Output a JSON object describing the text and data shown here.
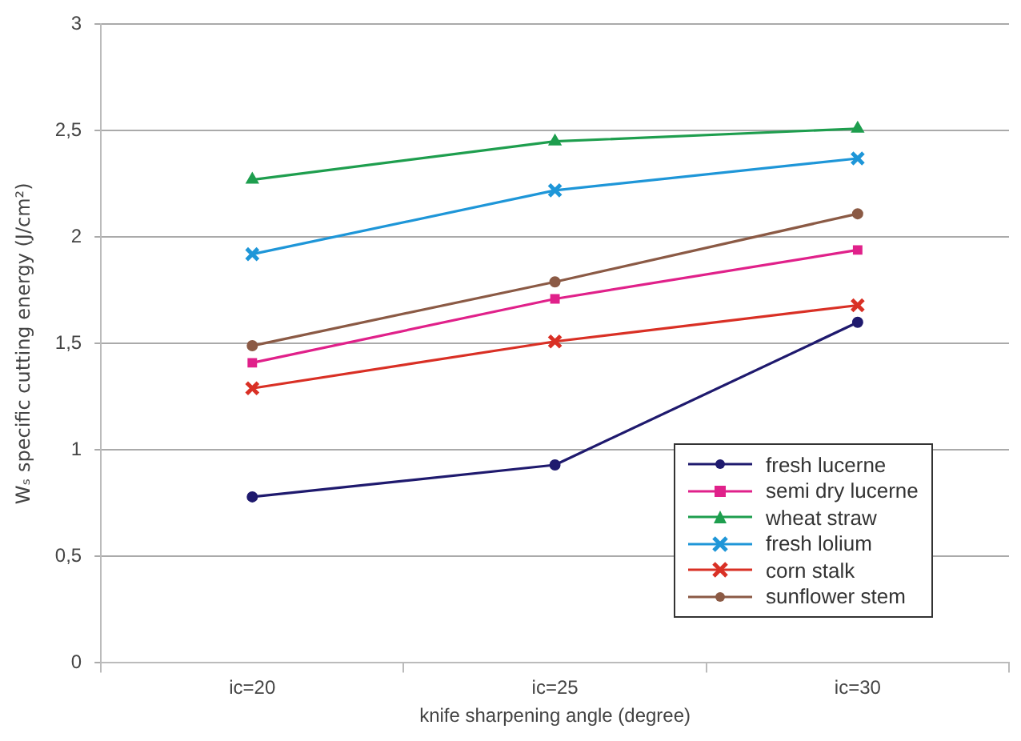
{
  "chart_data": {
    "type": "line",
    "xlabel": "knife sharpening angle (degree)",
    "ylabel": "Wₛ specific cutting energy (J/cm²)",
    "categories": [
      "ic=20",
      "ic=25",
      "ic=30"
    ],
    "series": [
      {
        "name": "fresh lucerne",
        "color": "#1f1a6e",
        "marker": "circle",
        "values": [
          0.78,
          0.93,
          1.6
        ]
      },
      {
        "name": "semi dry lucerne",
        "color": "#e0218a",
        "marker": "square",
        "values": [
          1.41,
          1.71,
          1.94
        ]
      },
      {
        "name": "wheat straw",
        "color": "#1e9e4e",
        "marker": "triangle",
        "values": [
          2.27,
          2.45,
          2.51
        ]
      },
      {
        "name": "fresh lolium",
        "color": "#1e96d8",
        "marker": "cross",
        "values": [
          1.92,
          2.22,
          2.37
        ]
      },
      {
        "name": "corn stalk",
        "color": "#d93025",
        "marker": "cross",
        "values": [
          1.29,
          1.51,
          1.68
        ]
      },
      {
        "name": "sunflower stem",
        "color": "#8b5a45",
        "marker": "circle",
        "values": [
          1.49,
          1.79,
          2.11
        ]
      }
    ],
    "ylim": [
      0,
      3
    ],
    "yticks": [
      0,
      {
        "value": 0.5,
        "label": "0,5"
      },
      1,
      {
        "value": 1.5,
        "label": "1,5"
      },
      2,
      {
        "value": 2.5,
        "label": "2,5"
      },
      3
    ],
    "grid": "y",
    "legend": "bottom right",
    "line_style": "solid"
  }
}
